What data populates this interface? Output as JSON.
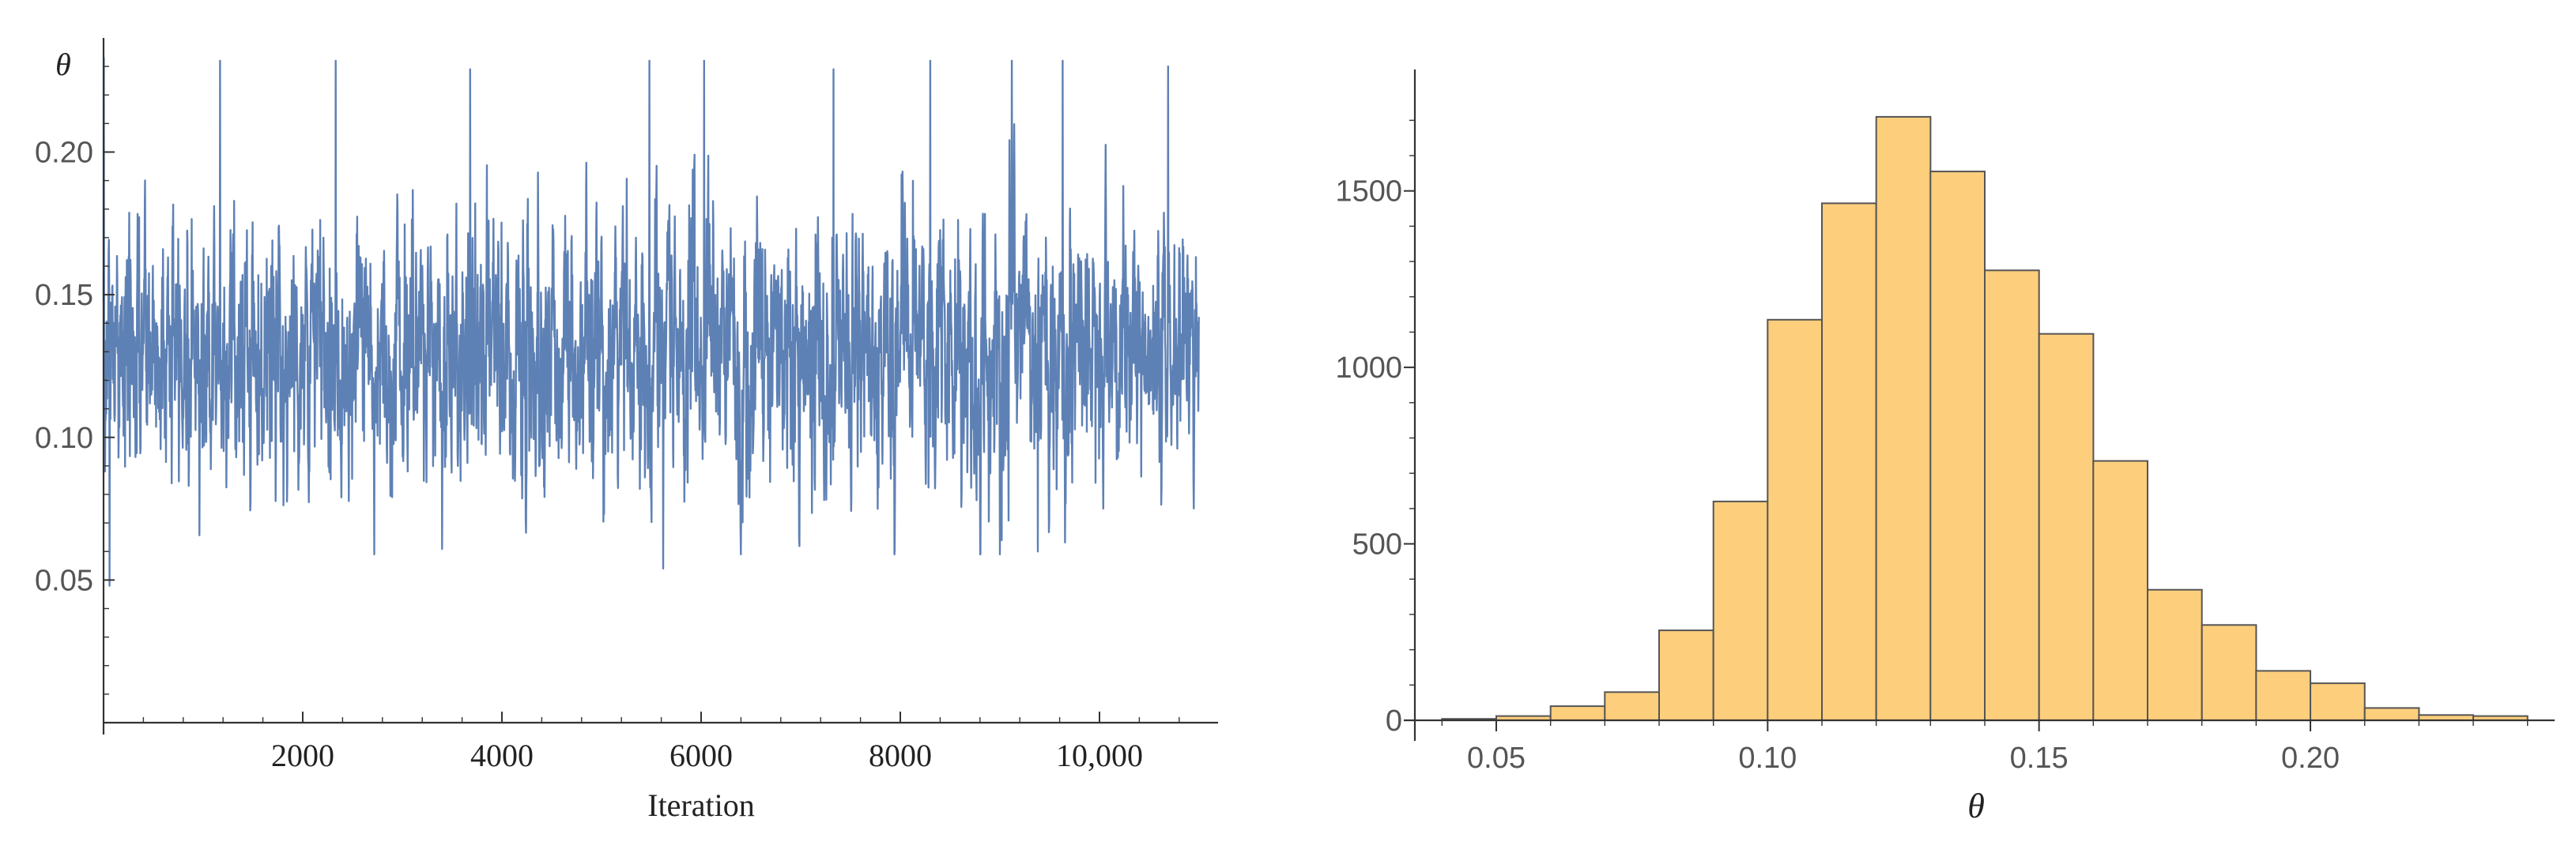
{
  "colors": {
    "trace": "#5e81b5",
    "bar_fill": "#fdce7c",
    "bar_edge": "#555555",
    "axis": "#333333"
  },
  "chart_data": [
    {
      "type": "line",
      "title": "",
      "xlabel": "Iteration",
      "ylabel": "θ",
      "xlim": [
        0,
        11000
      ],
      "ylim": [
        0.0,
        0.24
      ],
      "x_ticks": [
        2000,
        4000,
        6000,
        8000,
        10000
      ],
      "x_tick_labels": [
        "2000",
        "4000",
        "6000",
        "8000",
        "10,000"
      ],
      "y_ticks": [
        0.05,
        0.1,
        0.15,
        0.2
      ],
      "y_tick_labels": [
        "0.05",
        "0.10",
        "0.15",
        "0.20"
      ],
      "grid": false,
      "series": [
        {
          "iterations": 11000,
          "mean": 0.13,
          "sd": 0.022,
          "min": 0.047,
          "max": 0.233,
          "spikes": [
            {
              "x": 2,
              "y": 0.233
            },
            {
              "x": 60,
              "y": 0.048
            },
            {
              "x": 1170,
              "y": 0.232
            },
            {
              "x": 2330,
              "y": 0.232
            },
            {
              "x": 3680,
              "y": 0.229
            },
            {
              "x": 5480,
              "y": 0.232
            },
            {
              "x": 5620,
              "y": 0.054
            },
            {
              "x": 6030,
              "y": 0.232
            },
            {
              "x": 7330,
              "y": 0.229
            },
            {
              "x": 8300,
              "y": 0.232
            },
            {
              "x": 9120,
              "y": 0.232
            },
            {
              "x": 9380,
              "y": 0.06
            },
            {
              "x": 9630,
              "y": 0.232
            },
            {
              "x": 10690,
              "y": 0.23
            }
          ]
        }
      ]
    },
    {
      "type": "bar",
      "title": "",
      "xlabel": "θ",
      "ylabel": "",
      "xlim": [
        0.035,
        0.245
      ],
      "ylim": [
        0,
        1750
      ],
      "x_ticks": [
        0.05,
        0.1,
        0.15,
        0.2
      ],
      "x_tick_labels": [
        "0.05",
        "0.10",
        "0.15",
        "0.20"
      ],
      "y_ticks": [
        0,
        500,
        1000,
        1500
      ],
      "y_tick_labels": [
        "0",
        "500",
        "1000",
        "1500"
      ],
      "grid": false,
      "bin_width": 0.01,
      "bin_starts": [
        0.04,
        0.05,
        0.06,
        0.07,
        0.08,
        0.09,
        0.1,
        0.11,
        0.12,
        0.13,
        0.14,
        0.15,
        0.16,
        0.17,
        0.18,
        0.19,
        0.2,
        0.21,
        0.22,
        0.23
      ],
      "values": [
        4,
        12,
        40,
        80,
        255,
        620,
        1135,
        1465,
        1710,
        1555,
        1275,
        1095,
        735,
        370,
        270,
        140,
        105,
        35,
        15,
        12
      ]
    }
  ]
}
